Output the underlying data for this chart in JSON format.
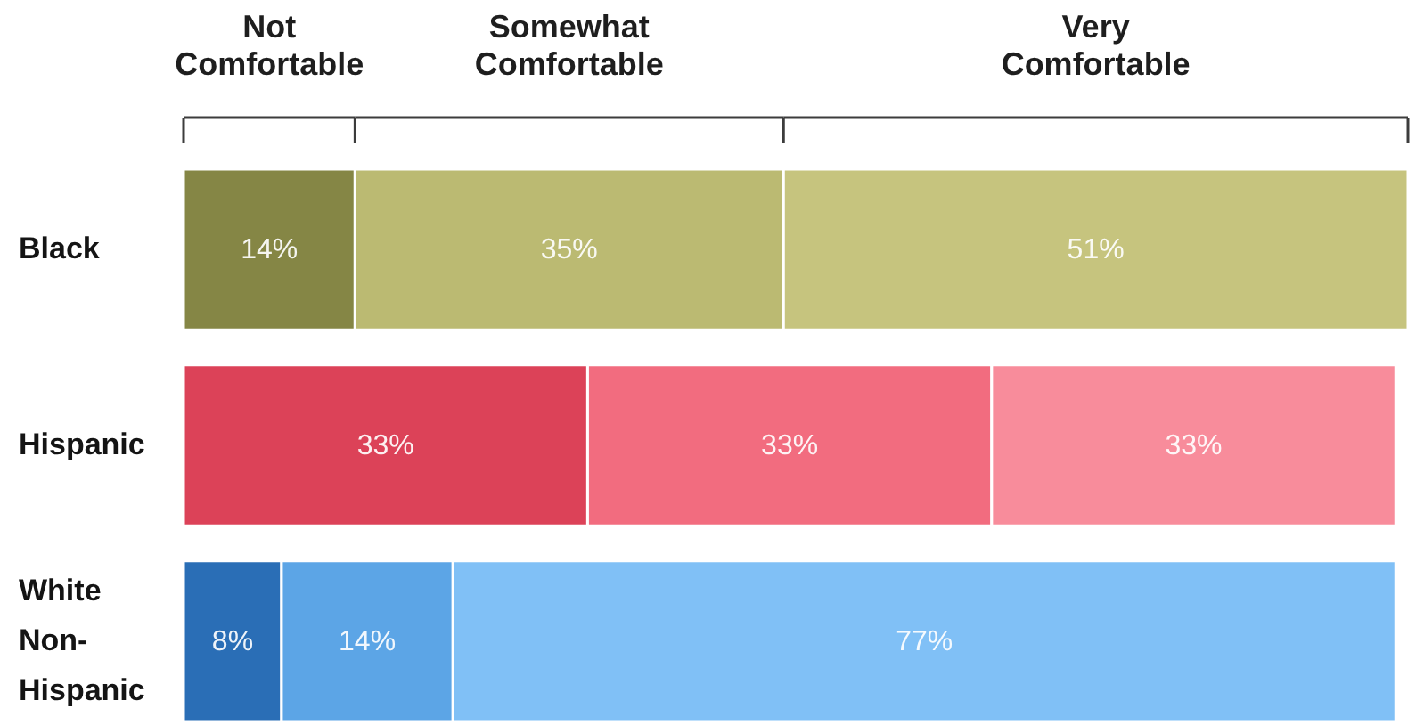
{
  "chart_data": {
    "type": "bar",
    "orientation": "horizontal",
    "stacked": true,
    "legend": "top",
    "categories": [
      "Black",
      "Hispanic",
      "White Non-Hispanic"
    ],
    "series": [
      {
        "name": "Not Comfortable",
        "colors": [
          "#858645",
          "#dc4258",
          "#2a6eb6"
        ],
        "values": [
          14,
          33,
          8
        ],
        "value_labels": [
          "14%",
          "33%",
          "8%"
        ]
      },
      {
        "name": "Somewhat Comfortable",
        "colors": [
          "#bbba72",
          "#f26c7f",
          "#5ca5e6"
        ],
        "values": [
          35,
          33,
          14
        ],
        "value_labels": [
          "35%",
          "33%",
          "14%"
        ]
      },
      {
        "name": "Very Comfortable",
        "colors": [
          "#c6c47e",
          "#f88c9b",
          "#80c0f6"
        ],
        "values": [
          51,
          33,
          77
        ],
        "value_labels": [
          "51%",
          "33%",
          "77%"
        ]
      }
    ]
  }
}
